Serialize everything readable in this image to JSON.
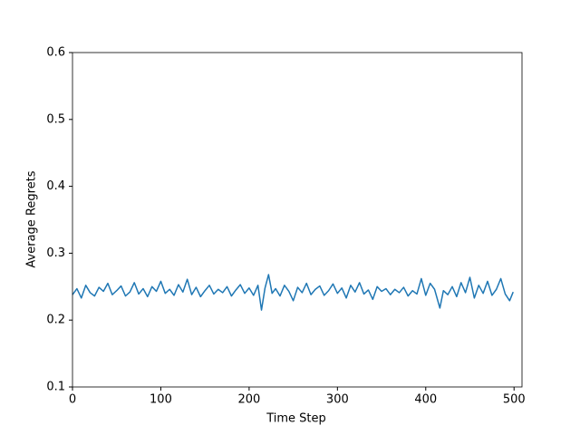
{
  "chart_data": {
    "type": "line",
    "xlabel": "Time Step",
    "ylabel": "Average Regrets",
    "xlim": [
      0,
      509
    ],
    "ylim": [
      0.1,
      0.6
    ],
    "xticks": [
      0,
      100,
      200,
      300,
      400,
      500
    ],
    "yticks": [
      0.1,
      0.2,
      0.3,
      0.4,
      0.5,
      0.6
    ],
    "x": [
      0,
      5,
      10,
      15,
      20,
      25,
      30,
      35,
      40,
      45,
      50,
      55,
      60,
      65,
      70,
      75,
      80,
      85,
      90,
      95,
      100,
      105,
      110,
      115,
      120,
      125,
      130,
      135,
      140,
      145,
      150,
      155,
      160,
      165,
      170,
      175,
      180,
      185,
      190,
      195,
      200,
      205,
      210,
      214,
      218,
      222,
      226,
      230,
      235,
      240,
      245,
      250,
      255,
      260,
      265,
      270,
      275,
      280,
      285,
      290,
      295,
      300,
      305,
      310,
      315,
      320,
      325,
      330,
      335,
      340,
      345,
      350,
      355,
      360,
      365,
      370,
      375,
      380,
      385,
      390,
      395,
      400,
      405,
      410,
      416,
      420,
      425,
      430,
      435,
      440,
      445,
      450,
      455,
      460,
      465,
      470,
      475,
      480,
      485,
      490,
      495,
      499
    ],
    "series": [
      {
        "color": "#1f77b4",
        "values": [
          0.238,
          0.247,
          0.233,
          0.252,
          0.241,
          0.236,
          0.249,
          0.243,
          0.255,
          0.238,
          0.244,
          0.251,
          0.236,
          0.242,
          0.256,
          0.239,
          0.247,
          0.235,
          0.25,
          0.243,
          0.258,
          0.24,
          0.246,
          0.237,
          0.253,
          0.242,
          0.261,
          0.238,
          0.249,
          0.235,
          0.244,
          0.252,
          0.239,
          0.246,
          0.241,
          0.25,
          0.236,
          0.245,
          0.253,
          0.24,
          0.248,
          0.237,
          0.252,
          0.215,
          0.248,
          0.268,
          0.24,
          0.247,
          0.236,
          0.252,
          0.243,
          0.229,
          0.249,
          0.241,
          0.255,
          0.238,
          0.246,
          0.251,
          0.237,
          0.244,
          0.254,
          0.24,
          0.248,
          0.233,
          0.252,
          0.242,
          0.256,
          0.239,
          0.245,
          0.231,
          0.25,
          0.243,
          0.247,
          0.238,
          0.246,
          0.241,
          0.249,
          0.236,
          0.244,
          0.239,
          0.262,
          0.237,
          0.255,
          0.246,
          0.218,
          0.244,
          0.238,
          0.25,
          0.235,
          0.256,
          0.241,
          0.264,
          0.233,
          0.252,
          0.24,
          0.258,
          0.237,
          0.246,
          0.262,
          0.239,
          0.229,
          0.242
        ]
      }
    ]
  }
}
